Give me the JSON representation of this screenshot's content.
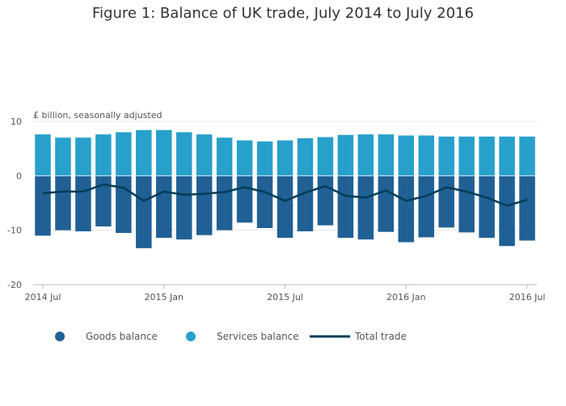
{
  "title": "Figure 1: Balance of UK trade, July 2014 to July 2016",
  "colors": {
    "goods": "#206095",
    "services": "#27a0cc",
    "total": "#003c57",
    "grid": "#e6e6e6",
    "axis": "#bbbbbb"
  },
  "chart_data": {
    "type": "bar",
    "stacked": true,
    "unit_label": "£ billion, seasonally adjusted",
    "x": [
      "2014 Jul",
      "2014 Aug",
      "2014 Sep",
      "2014 Oct",
      "2014 Nov",
      "2014 Dec",
      "2015 Jan",
      "2015 Feb",
      "2015 Mar",
      "2015 Apr",
      "2015 May",
      "2015 Jun",
      "2015 Jul",
      "2015 Aug",
      "2015 Sep",
      "2015 Oct",
      "2015 Nov",
      "2015 Dec",
      "2016 Jan",
      "2016 Feb",
      "2016 Mar",
      "2016 Apr",
      "2016 May",
      "2016 Jun",
      "2016 Jul"
    ],
    "x_ticks": [
      {
        "index": 0,
        "label": "2014 Jul"
      },
      {
        "index": 6,
        "label": "2015 Jan"
      },
      {
        "index": 12,
        "label": "2015 Jul"
      },
      {
        "index": 18,
        "label": "2016 Jan"
      },
      {
        "index": 24,
        "label": "2016 Jul"
      }
    ],
    "ylim": [
      -20,
      10
    ],
    "y_ticks": [
      10,
      0,
      -10,
      -20
    ],
    "grid": true,
    "legend_position": "bottom",
    "series": [
      {
        "name": "Goods balance",
        "kind": "bar",
        "values": [
          -11.0,
          -10.0,
          -10.2,
          -9.3,
          -10.5,
          -13.3,
          -11.4,
          -11.7,
          -10.9,
          -10.0,
          -8.6,
          -9.6,
          -11.4,
          -10.2,
          -9.1,
          -11.4,
          -11.7,
          -10.3,
          -12.2,
          -11.3,
          -9.5,
          -10.4,
          -11.4,
          -12.9,
          -11.9
        ]
      },
      {
        "name": "Services balance",
        "kind": "bar",
        "values": [
          7.6,
          7.0,
          7.0,
          7.6,
          8.0,
          8.4,
          8.4,
          8.0,
          7.6,
          7.0,
          6.5,
          6.3,
          6.5,
          6.9,
          7.1,
          7.5,
          7.6,
          7.6,
          7.4,
          7.4,
          7.2,
          7.2,
          7.2,
          7.2,
          7.2
        ]
      },
      {
        "name": "Total trade",
        "kind": "line",
        "values": [
          -3.2,
          -2.9,
          -2.9,
          -1.6,
          -2.2,
          -4.6,
          -2.9,
          -3.5,
          -3.3,
          -3.0,
          -2.1,
          -3.0,
          -4.6,
          -3.1,
          -1.9,
          -3.7,
          -4.0,
          -2.7,
          -4.6,
          -3.7,
          -2.1,
          -2.9,
          -4.0,
          -5.5,
          -4.4
        ]
      }
    ]
  }
}
